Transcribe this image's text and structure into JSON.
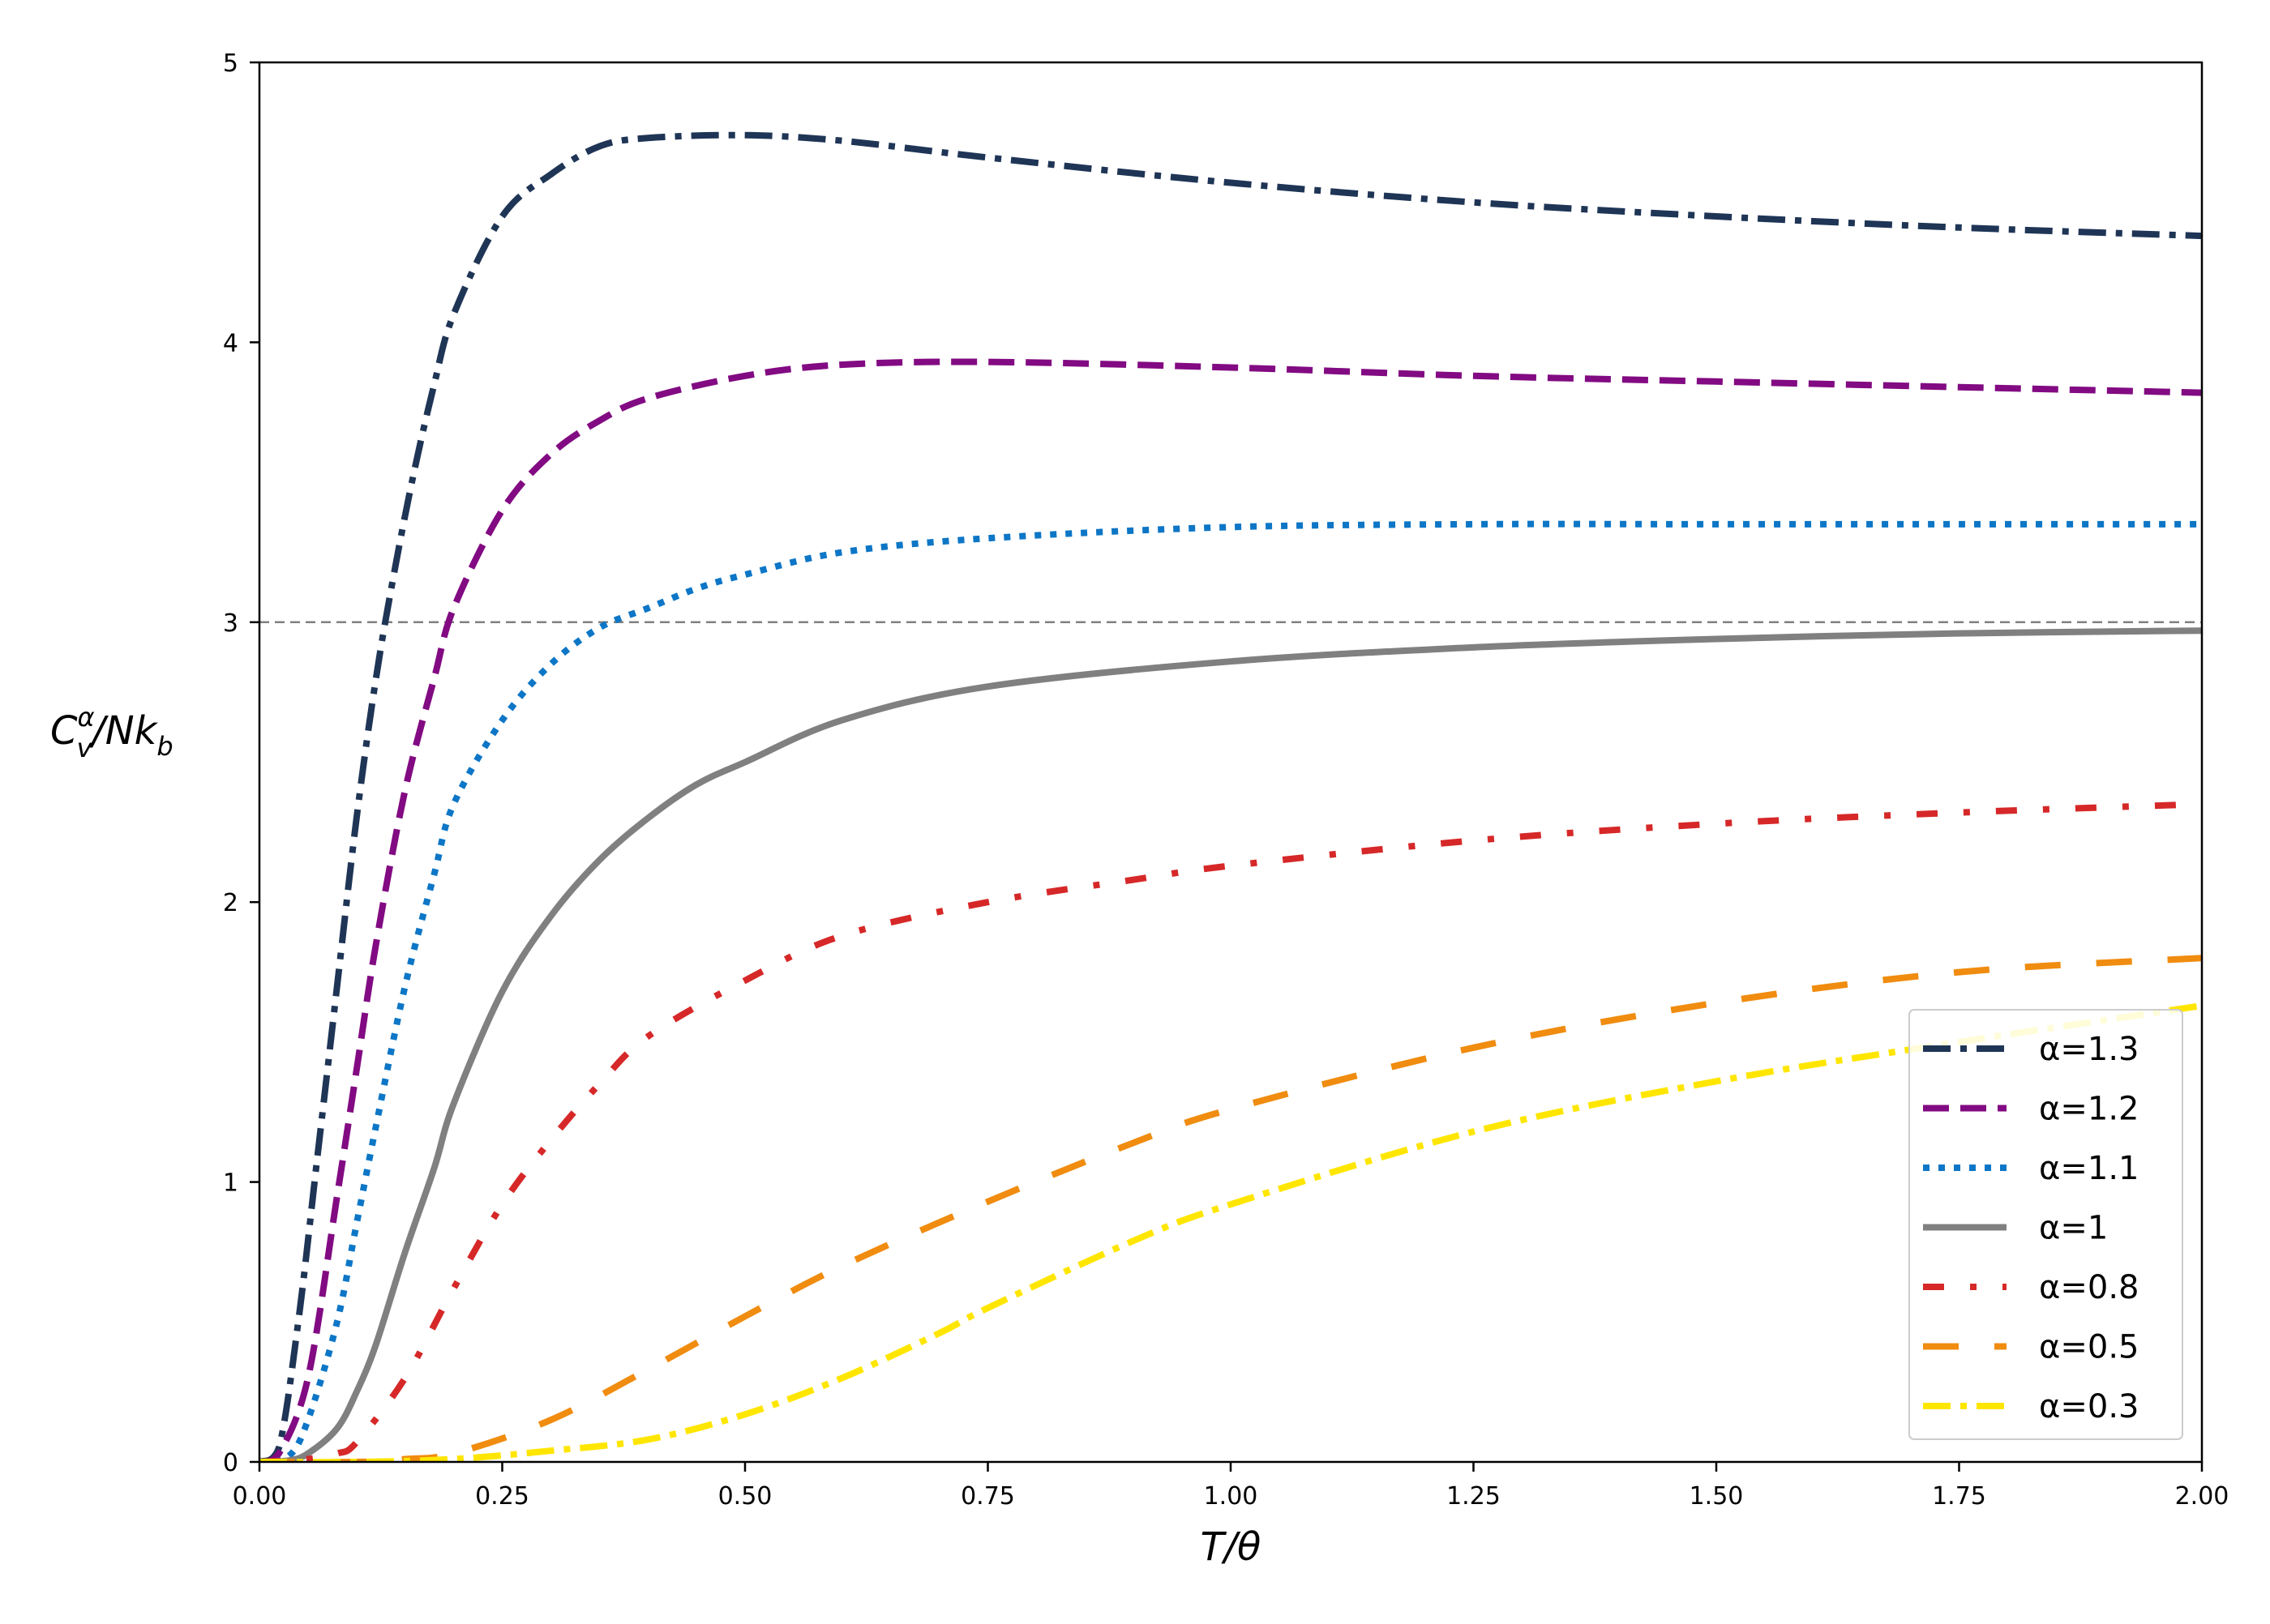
{
  "chart_data": {
    "type": "line",
    "title": "",
    "xlabel": "T/θ",
    "ylabel_parts": {
      "base": "C",
      "sup": "α",
      "sub": "v",
      "rest": "/Nk",
      "rest_sub": "b"
    },
    "xlim": [
      0,
      2
    ],
    "ylim": [
      0,
      5
    ],
    "xticks": [
      0,
      0.25,
      0.5,
      0.75,
      1.0,
      1.25,
      1.5,
      1.75,
      2.0
    ],
    "xtick_labels": [
      "0.00",
      "0.25",
      "0.50",
      "0.75",
      "1.00",
      "1.25",
      "1.50",
      "1.75",
      "2.00"
    ],
    "yticks": [
      0,
      1,
      2,
      3,
      4,
      5
    ],
    "ytick_labels": [
      "0",
      "1",
      "2",
      "3",
      "4",
      "5"
    ],
    "grid": false,
    "legend_position": "lower-right",
    "reference_line": {
      "y": 3,
      "color": "#808080",
      "style": "dashed"
    },
    "series": [
      {
        "name": "α=1.3",
        "color": "#1f3556",
        "style": "dashdot",
        "x": [
          0,
          0.02,
          0.04,
          0.06,
          0.08,
          0.1,
          0.12,
          0.14,
          0.16,
          0.18,
          0.2,
          0.25,
          0.3,
          0.35,
          0.4,
          0.5,
          0.6,
          0.75,
          1.0,
          1.25,
          1.5,
          1.75,
          2.0
        ],
        "y": [
          0,
          0.05,
          0.5,
          1.1,
          1.7,
          2.3,
          2.8,
          3.2,
          3.55,
          3.85,
          4.1,
          4.45,
          4.6,
          4.7,
          4.73,
          4.74,
          4.72,
          4.66,
          4.57,
          4.5,
          4.45,
          4.41,
          4.38
        ]
      },
      {
        "name": "α=1.2",
        "color": "#820a82",
        "style": "dashed",
        "x": [
          0,
          0.02,
          0.05,
          0.08,
          0.1,
          0.12,
          0.15,
          0.18,
          0.2,
          0.25,
          0.3,
          0.35,
          0.4,
          0.5,
          0.6,
          0.75,
          1.0,
          1.25,
          1.5,
          1.75,
          2.0
        ],
        "y": [
          0,
          0.03,
          0.3,
          0.95,
          1.4,
          1.85,
          2.4,
          2.8,
          3.05,
          3.4,
          3.6,
          3.72,
          3.8,
          3.88,
          3.92,
          3.93,
          3.91,
          3.88,
          3.86,
          3.84,
          3.82
        ]
      },
      {
        "name": "α=1.1",
        "color": "#0d76c6",
        "style": "dotted",
        "x": [
          0,
          0.03,
          0.05,
          0.08,
          0.1,
          0.12,
          0.15,
          0.18,
          0.2,
          0.25,
          0.3,
          0.35,
          0.4,
          0.45,
          0.5,
          0.6,
          0.75,
          1.0,
          1.25,
          1.5,
          1.75,
          2.0
        ],
        "y": [
          0,
          0.02,
          0.15,
          0.5,
          0.85,
          1.2,
          1.7,
          2.1,
          2.35,
          2.65,
          2.85,
          2.98,
          3.05,
          3.12,
          3.17,
          3.25,
          3.3,
          3.34,
          3.35,
          3.35,
          3.35,
          3.35
        ]
      },
      {
        "name": "α=1",
        "color": "#808080",
        "style": "solid",
        "x": [
          0,
          0.03,
          0.05,
          0.08,
          0.1,
          0.12,
          0.15,
          0.18,
          0.2,
          0.25,
          0.3,
          0.35,
          0.4,
          0.45,
          0.5,
          0.6,
          0.75,
          1.0,
          1.25,
          1.5,
          1.75,
          2.0
        ],
        "y": [
          0,
          0.005,
          0.03,
          0.12,
          0.25,
          0.42,
          0.75,
          1.05,
          1.28,
          1.68,
          1.95,
          2.15,
          2.3,
          2.42,
          2.5,
          2.65,
          2.77,
          2.86,
          2.91,
          2.94,
          2.96,
          2.97
        ]
      },
      {
        "name": "α=0.8",
        "color": "#d62828",
        "style": "dashdotsparse",
        "x": [
          0,
          0.05,
          0.08,
          0.1,
          0.15,
          0.2,
          0.25,
          0.3,
          0.35,
          0.4,
          0.5,
          0.6,
          0.75,
          0.9,
          1.0,
          1.25,
          1.5,
          1.75,
          2.0
        ],
        "y": [
          0,
          0.01,
          0.03,
          0.07,
          0.3,
          0.62,
          0.92,
          1.15,
          1.35,
          1.52,
          1.72,
          1.88,
          2.0,
          2.08,
          2.13,
          2.22,
          2.28,
          2.32,
          2.35
        ]
      },
      {
        "name": "α=0.5",
        "color": "#f08c0f",
        "style": "longdash",
        "x": [
          0,
          0.1,
          0.15,
          0.2,
          0.3,
          0.4,
          0.5,
          0.6,
          0.75,
          0.9,
          1.0,
          1.25,
          1.5,
          1.75,
          2.0
        ],
        "y": [
          0,
          0.0,
          0.01,
          0.03,
          0.15,
          0.33,
          0.52,
          0.7,
          0.93,
          1.14,
          1.26,
          1.48,
          1.64,
          1.75,
          1.8
        ]
      },
      {
        "name": "α=0.3",
        "color": "#ffe600",
        "style": "dashdot",
        "x": [
          0,
          0.1,
          0.2,
          0.3,
          0.4,
          0.5,
          0.6,
          0.7,
          0.75,
          0.9,
          1.0,
          1.25,
          1.5,
          1.75,
          2.0
        ],
        "y": [
          0,
          0.0,
          0.01,
          0.04,
          0.08,
          0.17,
          0.3,
          0.46,
          0.55,
          0.79,
          0.92,
          1.18,
          1.36,
          1.5,
          1.63
        ]
      }
    ]
  }
}
